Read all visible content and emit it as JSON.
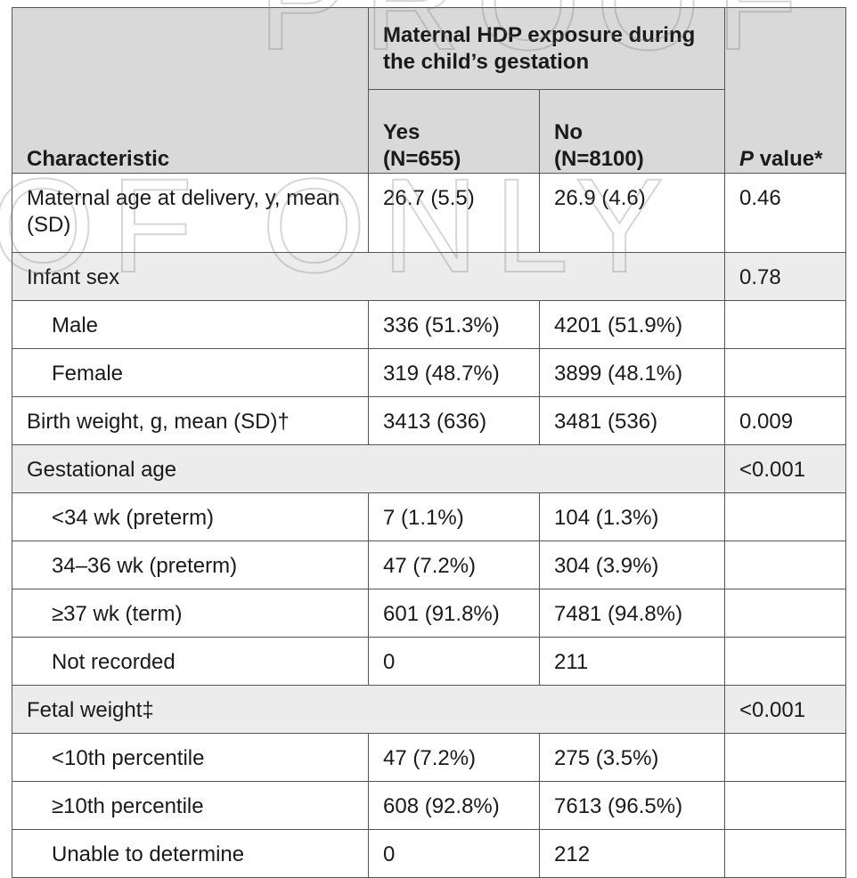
{
  "header": {
    "group": "Maternal HDP exposure during the child’s gestation",
    "characteristic": "Characteristic",
    "yes": "Yes",
    "yes_n": "(N=655)",
    "no": "No",
    "no_n": "(N=8100)",
    "p_italic": "P",
    "p_rest": " value*"
  },
  "rows": [
    {
      "label": "Maternal age at delivery, y, mean (SD)",
      "yes": "26.7 (5.5)",
      "no": "26.9 (4.6)",
      "p": "0.46"
    },
    {
      "label": "Infant sex",
      "p": "0.78"
    },
    {
      "label": "Male",
      "yes": "336 (51.3%)",
      "no": "4201 (51.9%)",
      "p": ""
    },
    {
      "label": "Female",
      "yes": "319 (48.7%)",
      "no": "3899 (48.1%)",
      "p": ""
    },
    {
      "label": "Birth weight, g, mean (SD)†",
      "yes": "3413 (636)",
      "no": "3481 (536)",
      "p": "0.009"
    },
    {
      "label": "Gestational age",
      "p": "<0.001"
    },
    {
      "label": "<34 wk (preterm)",
      "yes": "7 (1.1%)",
      "no": "104 (1.3%)",
      "p": ""
    },
    {
      "label": "34–36 wk (preterm)",
      "yes": "47 (7.2%)",
      "no": "304 (3.9%)",
      "p": ""
    },
    {
      "label": "≥37 wk (term)",
      "yes": "601 (91.8%)",
      "no": "7481 (94.8%)",
      "p": ""
    },
    {
      "label": "Not recorded",
      "yes": "0",
      "no": "211",
      "p": ""
    },
    {
      "label": "Fetal weight‡",
      "p": "<0.001"
    },
    {
      "label": "<10th percentile",
      "yes": "47 (7.2%)",
      "no": "275 (3.5%)",
      "p": ""
    },
    {
      "label": "≥10th percentile",
      "yes": "608 (92.8%)",
      "no": "7613 (96.5%)",
      "p": ""
    },
    {
      "label": "Unable to determine",
      "yes": "0",
      "no": "212",
      "p": ""
    }
  ],
  "watermark": {
    "line1": "PROOF",
    "line2": "OF ONLY"
  }
}
